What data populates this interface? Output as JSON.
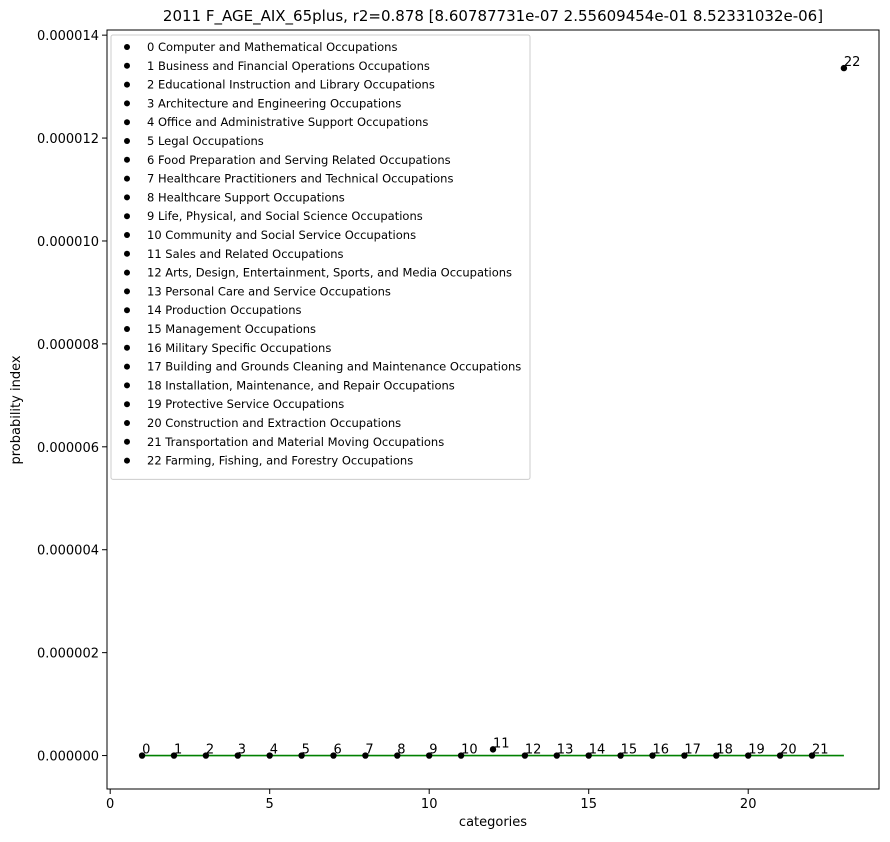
{
  "chart_data": {
    "type": "scatter",
    "title": "2011 F_AGE_AIX_65plus, r2=0.878  [8.60787731e-07 2.55609454e-01 8.52331032e-06]",
    "xlabel": "categories",
    "ylabel": "probability index",
    "xlim": [
      -0.1,
      24.1
    ],
    "ylim": [
      -6.5e-07,
      1.41e-05
    ],
    "xticks": [
      0,
      5,
      10,
      15,
      20
    ],
    "xtick_labels": [
      "0",
      "5",
      "10",
      "15",
      "20"
    ],
    "yticks": [
      0,
      2e-06,
      4e-06,
      6e-06,
      8e-06,
      1e-05,
      1.2e-05,
      1.4e-05
    ],
    "ytick_labels": [
      "0.000000",
      "0.000002",
      "0.000004",
      "0.000006",
      "0.000008",
      "0.000010",
      "0.000012",
      "0.000014"
    ],
    "grid": false,
    "legend_position": "top-left",
    "marker_color": "#000000",
    "fit_color": "#008000",
    "points": [
      {
        "x": 1,
        "y": 0,
        "label": "0"
      },
      {
        "x": 2,
        "y": 0,
        "label": "1"
      },
      {
        "x": 3,
        "y": 0,
        "label": "2"
      },
      {
        "x": 4,
        "y": 0,
        "label": "3"
      },
      {
        "x": 5,
        "y": 0,
        "label": "4"
      },
      {
        "x": 6,
        "y": 0,
        "label": "5"
      },
      {
        "x": 7,
        "y": 0,
        "label": "6"
      },
      {
        "x": 8,
        "y": 0,
        "label": "7"
      },
      {
        "x": 9,
        "y": 0,
        "label": "8"
      },
      {
        "x": 10,
        "y": 0,
        "label": "9"
      },
      {
        "x": 11,
        "y": 0,
        "label": "10"
      },
      {
        "x": 12,
        "y": 1.2e-07,
        "label": "11"
      },
      {
        "x": 13,
        "y": 0,
        "label": "12"
      },
      {
        "x": 14,
        "y": 0,
        "label": "13"
      },
      {
        "x": 15,
        "y": 0,
        "label": "14"
      },
      {
        "x": 16,
        "y": 0,
        "label": "15"
      },
      {
        "x": 17,
        "y": 0,
        "label": "16"
      },
      {
        "x": 18,
        "y": 0,
        "label": "17"
      },
      {
        "x": 19,
        "y": 0,
        "label": "18"
      },
      {
        "x": 20,
        "y": 0,
        "label": "19"
      },
      {
        "x": 21,
        "y": 0,
        "label": "20"
      },
      {
        "x": 22,
        "y": 0,
        "label": "21"
      },
      {
        "x": 23,
        "y": 1.336e-05,
        "label": "22"
      }
    ],
    "fit_line": {
      "x": [
        1,
        23
      ],
      "y": [
        0,
        0
      ]
    },
    "legend": [
      "0 Computer and Mathematical Occupations",
      "1 Business and Financial Operations Occupations",
      "2 Educational Instruction and Library Occupations",
      "3 Architecture and Engineering Occupations",
      "4 Office and Administrative Support Occupations",
      "5 Legal Occupations",
      "6 Food Preparation and Serving Related Occupations",
      "7 Healthcare Practitioners and Technical Occupations",
      "8 Healthcare Support Occupations",
      "9 Life, Physical, and Social Science Occupations",
      "10 Community and Social Service Occupations",
      "11 Sales and Related Occupations",
      "12 Arts, Design, Entertainment, Sports, and Media Occupations",
      "13 Personal Care and Service Occupations",
      "14 Production Occupations",
      "15 Management Occupations",
      "16 Military Specific Occupations",
      "17 Building and Grounds Cleaning and Maintenance Occupations",
      "18 Installation, Maintenance, and Repair Occupations",
      "19 Protective Service Occupations",
      "20 Construction and Extraction Occupations",
      "21 Transportation and Material Moving Occupations",
      "22 Farming, Fishing, and Forestry Occupations"
    ]
  }
}
